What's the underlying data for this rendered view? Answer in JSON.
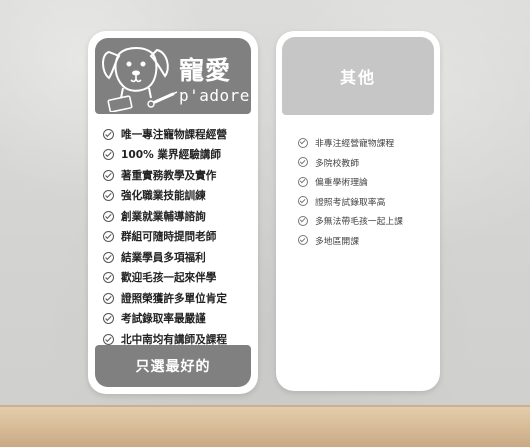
{
  "brand": {
    "name_zh": "寵愛",
    "name_en": "p'adore"
  },
  "left_card": {
    "features": [
      "唯一專注寵物課程經營",
      "100% 業界經驗講師",
      "著重實務教學及實作",
      "強化職業技能訓練",
      "創業就業輔導諮詢",
      "群組可隨時提問老師",
      "結業學員多項福利",
      "歡迎毛孩一起來伴學",
      "證照榮獲許多單位肯定",
      "考試錄取率最嚴謹",
      "北中南均有講師及課程"
    ],
    "footer": "只選最好的"
  },
  "right_card": {
    "title": "其他",
    "items": [
      "非專注經營寵物課程",
      "多院校教師",
      "偏重學術理論",
      "證照考試錄取率高",
      "多無法帶毛孩一起上課",
      "多地區開課"
    ]
  },
  "icons": {
    "check": "check-circle-icon",
    "logo": "dog-logo-icon"
  },
  "colors": {
    "left_panel": "#808080",
    "right_panel": "#c6c6c6",
    "floor": "#d9bf9a",
    "wall": "#d6d6d4"
  }
}
